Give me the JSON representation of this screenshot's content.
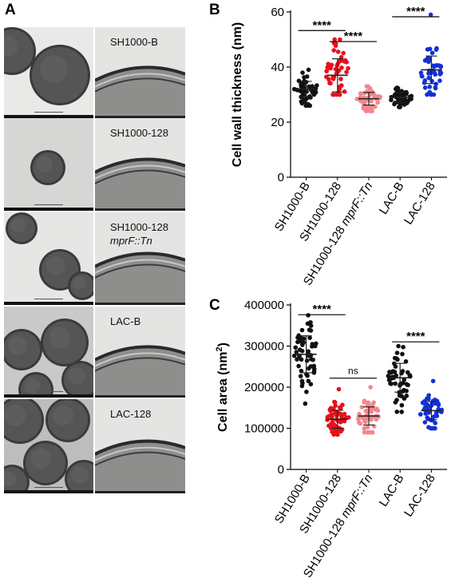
{
  "panels": {
    "a": {
      "letter": "A"
    },
    "b": {
      "letter": "B"
    },
    "c": {
      "letter": "C"
    }
  },
  "micrographs": [
    {
      "label": "SH1000-B",
      "label_line2": ""
    },
    {
      "label": "SH1000-128",
      "label_line2": ""
    },
    {
      "label": "SH1000-128",
      "label_line2": "mprF::Tn"
    },
    {
      "label": "LAC-B",
      "label_line2": ""
    },
    {
      "label": "LAC-128",
      "label_line2": ""
    }
  ],
  "colors": {
    "SH1000-B": "#111111",
    "SH1000-128": "#e8101c",
    "SH1000-128 mprF::Tn": "#f4878c",
    "LAC-B": "#111111",
    "LAC-128": "#1530d6"
  },
  "chart_data": [
    {
      "type": "scatter",
      "panel": "B",
      "ylabel": "Cell wall thickness (nm)",
      "ylim": [
        0,
        60
      ],
      "yticks": [
        0,
        20,
        40,
        60
      ],
      "categories": [
        "SH1000-B",
        "SH1000-128",
        "SH1000-128 mprF::Tn",
        "LAC-B",
        "LAC-128"
      ],
      "tick_labels": [
        {
          "main": "SH1000-B",
          "italic": ""
        },
        {
          "main": "SH1000-128",
          "italic": ""
        },
        {
          "main": "SH1000-128 ",
          "italic": "mprF::Tn"
        },
        {
          "main": "LAC-B",
          "italic": ""
        },
        {
          "main": "LAC-128",
          "italic": ""
        }
      ],
      "series": [
        {
          "category": "SH1000-B",
          "mean": 32,
          "sd": 2.8,
          "n": 50,
          "min": 26,
          "max": 39
        },
        {
          "category": "SH1000-128",
          "mean": 37,
          "sd": 6,
          "n": 50,
          "min": 30,
          "max": 50
        },
        {
          "category": "SH1000-128 mprF::Tn",
          "mean": 28.5,
          "sd": 2.3,
          "n": 50,
          "min": 24,
          "max": 33
        },
        {
          "category": "LAC-B",
          "mean": 29,
          "sd": 1.8,
          "n": 50,
          "min": 25.5,
          "max": 32.5
        },
        {
          "category": "LAC-128",
          "mean": 39,
          "sd": 5,
          "n": 50,
          "min": 30,
          "max": 59
        }
      ],
      "significance": [
        {
          "from": 0,
          "to": 1,
          "label": "****",
          "y": 55
        },
        {
          "from": 1,
          "to": 2,
          "label": "****",
          "y": 51
        },
        {
          "from": 3,
          "to": 4,
          "label": "****",
          "y": 60
        }
      ]
    },
    {
      "type": "scatter",
      "panel": "C",
      "ylabel": "Cell area (nm²)",
      "ylabel_main": "Cell area (nm",
      "ylabel_sup": "2",
      "ylabel_end": ")",
      "ylim": [
        0,
        400000
      ],
      "yticks": [
        0,
        100000,
        200000,
        300000,
        400000
      ],
      "categories": [
        "SH1000-B",
        "SH1000-128",
        "SH1000-128 mprF::Tn",
        "LAC-B",
        "LAC-128"
      ],
      "tick_labels": [
        {
          "main": "SH1000-B",
          "italic": ""
        },
        {
          "main": "SH1000-128",
          "italic": ""
        },
        {
          "main": "SH1000-128 ",
          "italic": "mprF::Tn"
        },
        {
          "main": "LAC-B",
          "italic": ""
        },
        {
          "main": "LAC-128",
          "italic": ""
        }
      ],
      "series": [
        {
          "category": "SH1000-B",
          "mean": 280000,
          "sd": 45000,
          "n": 55,
          "min": 160000,
          "max": 375000
        },
        {
          "category": "SH1000-128",
          "mean": 122000,
          "sd": 22000,
          "n": 55,
          "min": 85000,
          "max": 195000
        },
        {
          "category": "SH1000-128 mprF::Tn",
          "mean": 130000,
          "sd": 22000,
          "n": 55,
          "min": 90000,
          "max": 200000
        },
        {
          "category": "LAC-B",
          "mean": 223000,
          "sd": 35000,
          "n": 50,
          "min": 140000,
          "max": 300000
        },
        {
          "category": "LAC-128",
          "mean": 143000,
          "sd": 22000,
          "n": 50,
          "min": 100000,
          "max": 215000
        }
      ],
      "significance": [
        {
          "from": 0,
          "to": 1,
          "label": "****",
          "y": 388000
        },
        {
          "from": 1,
          "to": 2,
          "label": "ns",
          "y": 222000
        },
        {
          "from": 3,
          "to": 4,
          "label": "****",
          "y": 322000
        }
      ]
    }
  ]
}
